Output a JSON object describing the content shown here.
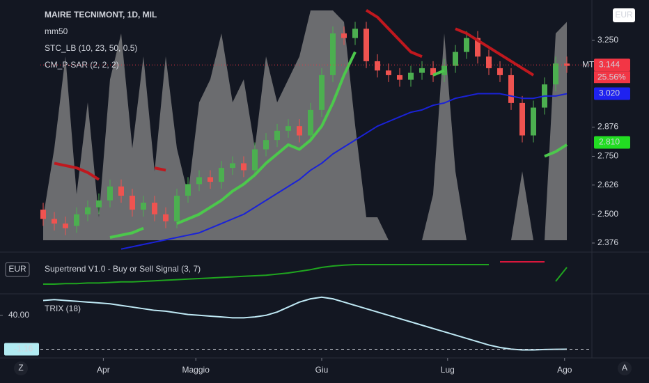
{
  "chart_data": [
    {
      "type": "candlestick",
      "title": "MAIRE TECNIMONT, 1D, MIL",
      "currency": "EUR",
      "categories": [
        null,
        null,
        null,
        null,
        null,
        null,
        null,
        null,
        null,
        null,
        null,
        null,
        null,
        null,
        null,
        null,
        null,
        null,
        null,
        null,
        null,
        null,
        null,
        null,
        null,
        null,
        null,
        null,
        null,
        null,
        null,
        null,
        null,
        null,
        null,
        null,
        null,
        null,
        null,
        null,
        null,
        null,
        null,
        null,
        null,
        null,
        null,
        null
      ],
      "open": [
        2.52,
        2.48,
        2.46,
        2.45,
        2.5,
        2.53,
        2.56,
        2.62,
        2.58,
        2.52,
        2.55,
        2.5,
        2.47,
        2.58,
        2.63,
        2.66,
        2.64,
        2.7,
        2.72,
        2.69,
        2.78,
        2.82,
        2.86,
        2.88,
        2.84,
        2.95,
        3.1,
        3.28,
        3.26,
        3.3,
        3.16,
        3.12,
        3.1,
        3.08,
        3.11,
        3.13,
        3.1,
        3.14,
        3.2,
        3.26,
        3.18,
        3.13,
        3.1,
        2.98,
        2.84,
        2.96,
        3.06,
        3.15
      ],
      "high": [
        2.55,
        2.51,
        2.49,
        2.53,
        2.56,
        2.59,
        2.65,
        2.65,
        2.61,
        2.58,
        2.58,
        2.53,
        2.61,
        2.66,
        2.69,
        2.69,
        2.73,
        2.75,
        2.75,
        2.81,
        2.85,
        2.89,
        2.91,
        2.91,
        2.98,
        3.13,
        3.31,
        3.31,
        3.33,
        3.33,
        3.19,
        3.15,
        3.13,
        3.14,
        3.16,
        3.16,
        3.17,
        3.23,
        3.29,
        3.29,
        3.21,
        3.16,
        3.13,
        3.01,
        2.99,
        3.09,
        3.18,
        3.18
      ],
      "low": [
        2.45,
        2.43,
        2.41,
        2.42,
        2.47,
        2.5,
        2.53,
        2.55,
        2.49,
        2.49,
        2.47,
        2.44,
        2.44,
        2.55,
        2.6,
        2.61,
        2.61,
        2.67,
        2.66,
        2.66,
        2.75,
        2.79,
        2.83,
        2.81,
        2.81,
        2.92,
        3.07,
        3.23,
        3.23,
        3.13,
        3.09,
        3.07,
        3.05,
        3.05,
        3.08,
        3.07,
        3.07,
        3.11,
        3.17,
        3.15,
        3.1,
        3.07,
        2.95,
        2.81,
        2.81,
        2.93,
        3.03,
        3.11
      ],
      "close": [
        2.48,
        2.46,
        2.44,
        2.5,
        2.53,
        2.56,
        2.62,
        2.58,
        2.52,
        2.55,
        2.5,
        2.47,
        2.58,
        2.63,
        2.66,
        2.64,
        2.7,
        2.72,
        2.69,
        2.78,
        2.82,
        2.86,
        2.88,
        2.84,
        2.95,
        3.1,
        3.28,
        3.26,
        3.3,
        3.16,
        3.12,
        3.1,
        3.08,
        3.11,
        3.13,
        3.1,
        3.14,
        3.2,
        3.26,
        3.18,
        3.13,
        3.1,
        2.98,
        2.84,
        2.96,
        3.06,
        3.15,
        3.14
      ],
      "up_color": "#4caf50",
      "down_color": "#ef5350",
      "ylim": [
        2.343,
        3.394
      ],
      "yticks": [
        2.376,
        {
          "value": 2.5,
          "label": "2.500"
        },
        2.626,
        {
          "value": 2.75,
          "label": "2.750"
        },
        2.876,
        {
          "value": 3.25,
          "label": "3.250"
        }
      ],
      "xticks": [
        {
          "value": 5.4,
          "label": "Apr"
        },
        {
          "value": 13.7,
          "label": "Maggio"
        },
        {
          "value": 25,
          "label": "Giu"
        },
        {
          "value": 36.3,
          "label": "Lug"
        },
        {
          "value": 46.8,
          "label": "Ago"
        }
      ],
      "series": [
        {
          "name": "STC_LB (10, 23, 50, 0.5)",
          "type": "area",
          "color": "#8a8a8a",
          "lim": [
            0,
            100
          ],
          "values": [
            10,
            40,
            80,
            20,
            60,
            10,
            70,
            90,
            40,
            80,
            30,
            80,
            40,
            20,
            60,
            70,
            90,
            60,
            70,
            40,
            80,
            60,
            70,
            80,
            100,
            100,
            100,
            95,
            50,
            10,
            10,
            0,
            0,
            0,
            0,
            20,
            90,
            30,
            0,
            0,
            0,
            0,
            0,
            30,
            0,
            0,
            90,
            95
          ]
        },
        {
          "name": "mm50",
          "type": "line",
          "color": "#1a22d8",
          "values": [
            null,
            null,
            null,
            null,
            null,
            null,
            null,
            2.35,
            2.36,
            2.37,
            2.38,
            2.39,
            2.4,
            2.41,
            2.42,
            2.44,
            2.46,
            2.48,
            2.5,
            2.53,
            2.56,
            2.59,
            2.62,
            2.65,
            2.69,
            2.72,
            2.76,
            2.79,
            2.82,
            2.85,
            2.88,
            2.9,
            2.92,
            2.94,
            2.95,
            2.97,
            2.98,
            3.0,
            3.01,
            3.02,
            3.02,
            3.02,
            3.01,
            3.0,
            3.0,
            3.01,
            3.01,
            3.02
          ]
        },
        {
          "name": "CM_P-SAR (2, 2, 2)",
          "type": "line",
          "values": [
            2.4,
            2.72,
            2.71,
            2.7,
            2.68,
            2.65,
            2.4,
            2.41,
            2.42,
            2.44,
            2.7,
            2.69,
            2.46,
            2.48,
            2.5,
            2.53,
            2.56,
            2.6,
            2.63,
            2.67,
            2.72,
            2.76,
            2.8,
            2.78,
            2.82,
            2.88,
            2.98,
            3.1,
            3.2,
            3.38,
            3.35,
            3.3,
            3.25,
            3.2,
            3.18,
            3.1,
            3.12,
            3.3,
            3.28,
            3.25,
            3.22,
            3.19,
            3.16,
            3.13,
            3.1,
            2.75,
            2.77,
            2.8
          ],
          "colors": [
            "#4cc84c",
            "#c0181e",
            "#c0181e",
            "#c0181e",
            "#c0181e",
            "#c0181e",
            "#4cc84c",
            "#4cc84c",
            "#4cc84c",
            "#4cc84c",
            "#c0181e",
            "#c0181e",
            "#4cc84c",
            "#4cc84c",
            "#4cc84c",
            "#4cc84c",
            "#4cc84c",
            "#4cc84c",
            "#4cc84c",
            "#4cc84c",
            "#4cc84c",
            "#4cc84c",
            "#4cc84c",
            "#4cc84c",
            "#4cc84c",
            "#4cc84c",
            "#4cc84c",
            "#4cc84c",
            "#4cc84c",
            "#c0181e",
            "#c0181e",
            "#c0181e",
            "#c0181e",
            "#c0181e",
            "#c0181e",
            "#4cc84c",
            "#4cc84c",
            "#c0181e",
            "#c0181e",
            "#c0181e",
            "#c0181e",
            "#c0181e",
            "#c0181e",
            "#c0181e",
            "#c0181e",
            "#4cc84c",
            "#4cc84c",
            "#4cc84c"
          ]
        }
      ],
      "badges": [
        {
          "name": "MT",
          "value": 3.144,
          "color": "#f23645",
          "change": {
            "value": 25.56,
            "label": "25.56%"
          }
        },
        {
          "value": 3.02,
          "label": "3.020",
          "color": "#1e22f0"
        },
        {
          "value": 2.81,
          "label": "2.810",
          "color": "#22dd22"
        }
      ]
    },
    {
      "type": "line",
      "title": "Supertrend V1.0 - Buy or Sell Signal (3, 7)",
      "currency": "EUR",
      "ylim": [
        0,
        100
      ],
      "values": [
        10,
        10,
        12,
        12,
        14,
        14,
        16,
        18,
        18,
        20,
        22,
        24,
        26,
        28,
        30,
        32,
        34,
        36,
        38,
        40,
        42,
        46,
        50,
        56,
        62,
        70,
        75,
        78,
        80,
        80,
        80,
        80,
        80,
        80,
        80,
        80,
        80,
        80,
        80,
        80,
        80,
        90,
        90,
        90,
        90,
        90,
        20,
        70
      ],
      "colors": [
        "#1fa51f",
        "#1fa51f",
        "#1fa51f",
        "#1fa51f",
        "#1fa51f",
        "#1fa51f",
        "#1fa51f",
        "#1fa51f",
        "#1fa51f",
        "#1fa51f",
        "#1fa51f",
        "#1fa51f",
        "#1fa51f",
        "#1fa51f",
        "#1fa51f",
        "#1fa51f",
        "#1fa51f",
        "#1fa51f",
        "#1fa51f",
        "#1fa51f",
        "#1fa51f",
        "#1fa51f",
        "#1fa51f",
        "#1fa51f",
        "#1fa51f",
        "#1fa51f",
        "#1fa51f",
        "#1fa51f",
        "#1fa51f",
        "#1fa51f",
        "#1fa51f",
        "#1fa51f",
        "#1fa51f",
        "#1fa51f",
        "#1fa51f",
        "#1fa51f",
        "#1fa51f",
        "#1fa51f",
        "#1fa51f",
        "#1fa51f",
        "#1fa51f",
        "#d8173c",
        "#d8173c",
        "#d8173c",
        "#d8173c",
        "#d8173c",
        "#1fa51f",
        "#1fa51f"
      ]
    },
    {
      "type": "line",
      "title": "TRIX (18)",
      "color": "#bfe9f5",
      "ylim": [
        -10,
        66
      ],
      "yticks": [
        {
          "value": 40,
          "label": "40.00"
        }
      ],
      "values": [
        58,
        59,
        58,
        57,
        56,
        55,
        54,
        52,
        50,
        48,
        46,
        45,
        43,
        41,
        40,
        39,
        38,
        37,
        37,
        38,
        40,
        44,
        50,
        56,
        60,
        62,
        60,
        56,
        52,
        48,
        44,
        40,
        36,
        32,
        28,
        24,
        20,
        16,
        12,
        8,
        4,
        1,
        -1,
        -2,
        -2,
        -1.5,
        -1.2,
        -1.16
      ],
      "badge": {
        "value": -1.16,
        "color": "#b2ebf2"
      }
    }
  ],
  "corner_left": "Z",
  "corner_right": "A"
}
